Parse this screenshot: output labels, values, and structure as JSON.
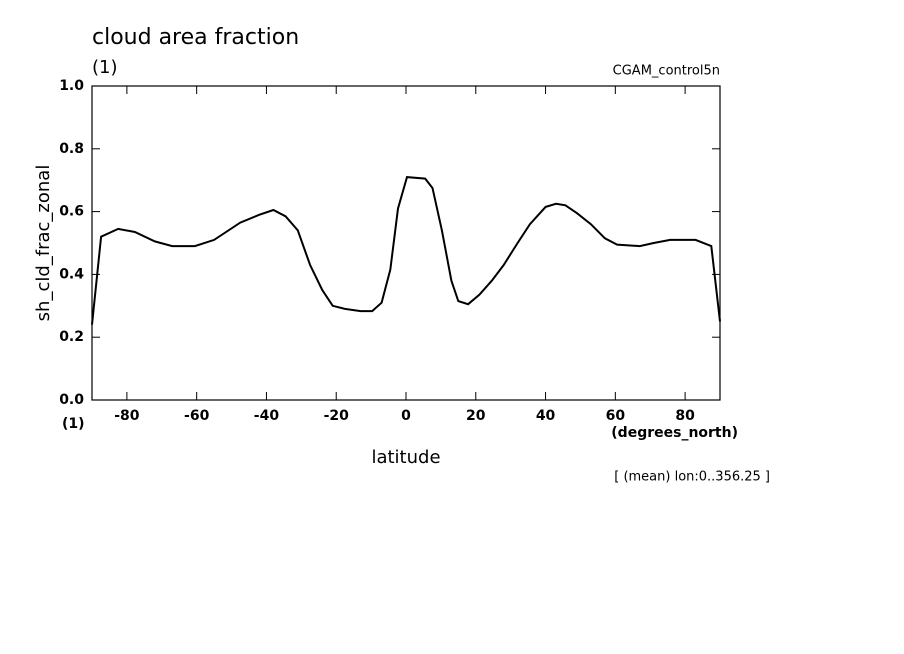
{
  "chart_data": {
    "type": "line",
    "title": "cloud area fraction",
    "units": "(1)",
    "run": "CGAM_control5n",
    "y_label": "sh_cld_frac_zonal",
    "y_units": "(1)",
    "x_units": "(degrees_north)",
    "x_label": "latitude",
    "note": "[ (mean) lon:0..356.25 ]",
    "color": "#000000",
    "x": [
      -90,
      -87.4,
      -82.5,
      -77.7,
      -72,
      -67,
      -60.5,
      -55,
      -47.5,
      -42,
      -38,
      -34.5,
      -31,
      -27.5,
      -24,
      -21,
      -17.5,
      -13,
      -9.7,
      -7,
      -4.5,
      -2.3,
      0.3,
      5.5,
      7.6,
      10.3,
      13,
      15,
      17.8,
      21,
      24.6,
      28,
      32,
      35.5,
      40,
      43,
      45.7,
      49,
      53,
      57,
      60.5,
      67,
      71,
      75.7,
      83,
      87.5,
      90
    ],
    "values": [
      0.24,
      0.52,
      0.545,
      0.535,
      0.505,
      0.49,
      0.49,
      0.51,
      0.565,
      0.59,
      0.605,
      0.585,
      0.54,
      0.43,
      0.35,
      0.3,
      0.29,
      0.283,
      0.283,
      0.31,
      0.415,
      0.61,
      0.71,
      0.705,
      0.675,
      0.54,
      0.38,
      0.315,
      0.305,
      0.335,
      0.38,
      0.43,
      0.5,
      0.56,
      0.615,
      0.625,
      0.62,
      0.595,
      0.56,
      0.515,
      0.495,
      0.49,
      0.5,
      0.51,
      0.51,
      0.49,
      0.25
    ],
    "xlim": [
      -90,
      90
    ],
    "xticks": [
      -80,
      -60,
      -40,
      -20,
      0,
      20,
      40,
      60,
      80
    ],
    "ylim": [
      0,
      1
    ],
    "yticks": [
      {
        "value": 0,
        "label": "0.0"
      },
      0.2,
      0.4,
      0.6,
      0.8,
      {
        "value": 1,
        "label": "1.0"
      }
    ]
  }
}
